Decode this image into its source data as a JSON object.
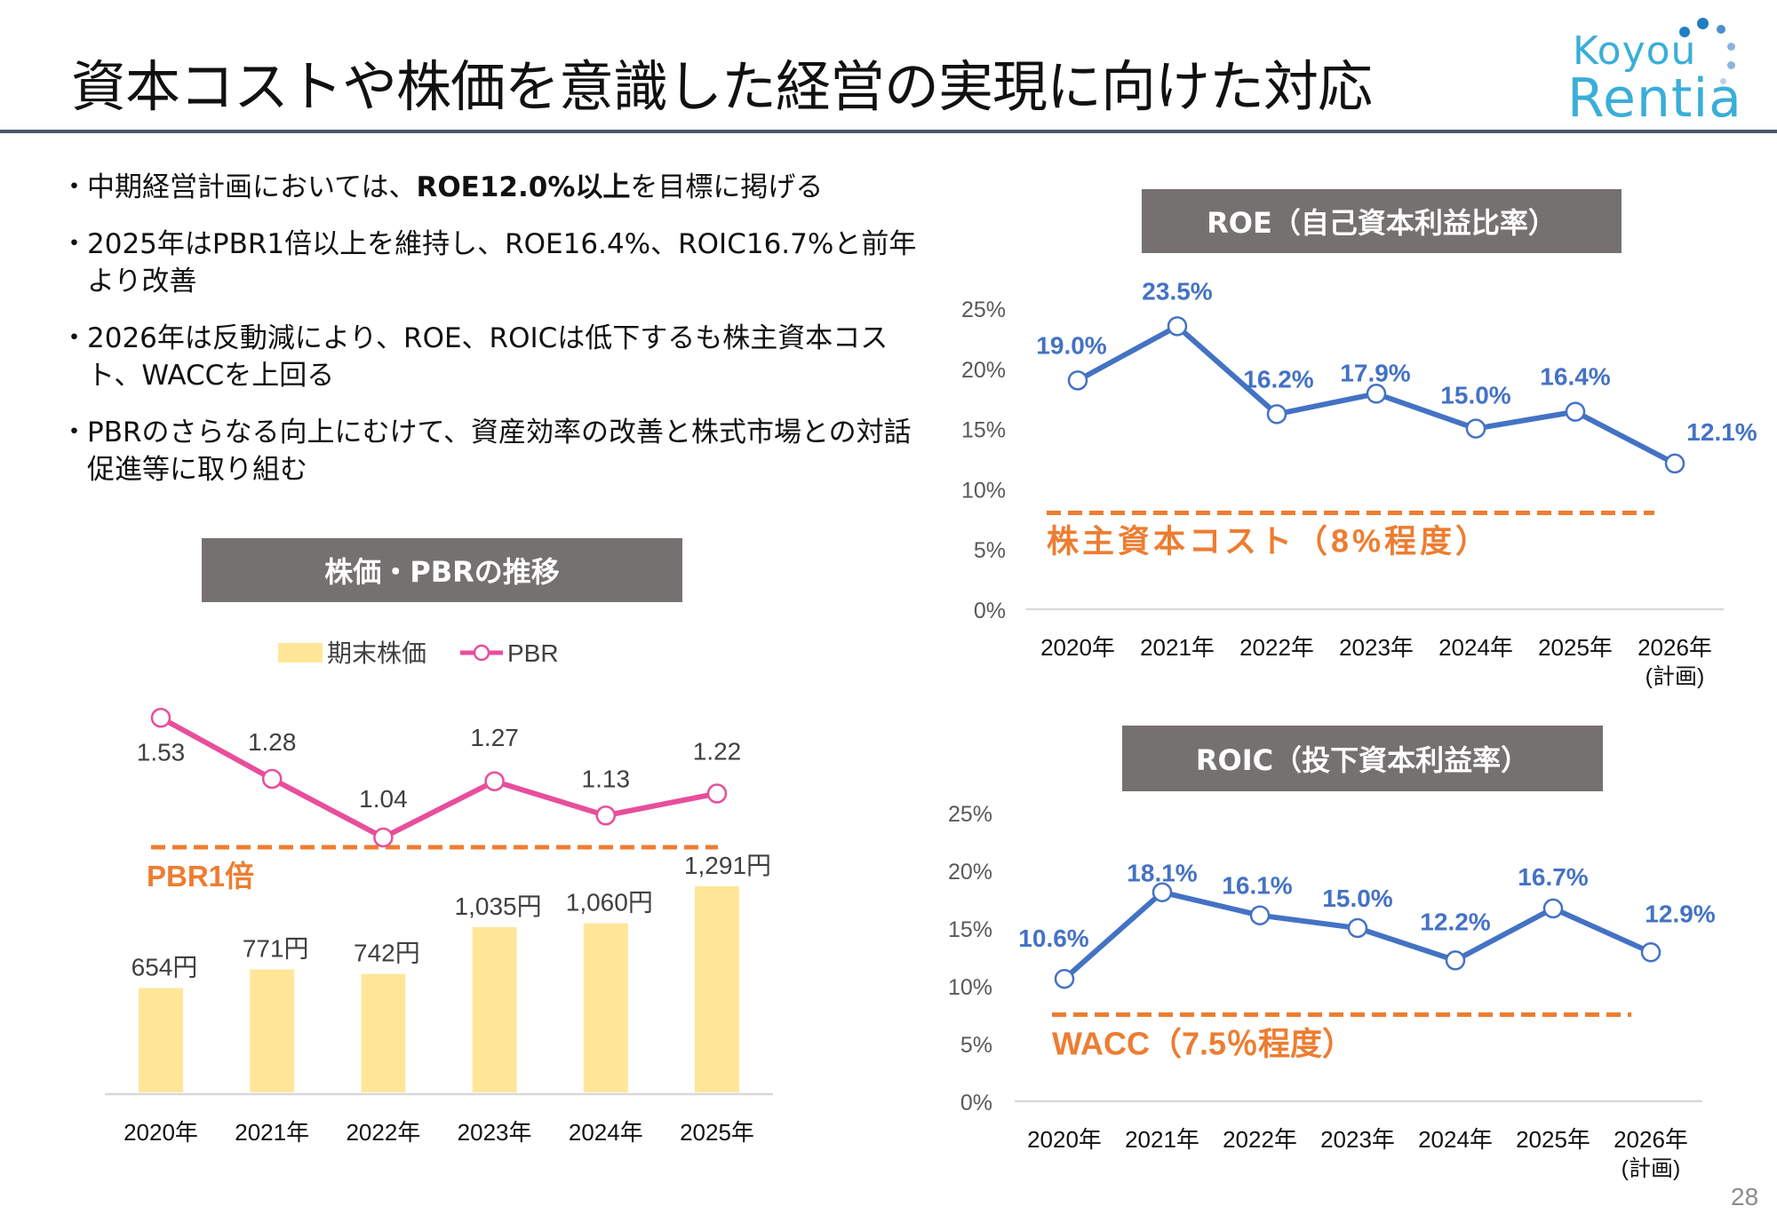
{
  "page": {
    "title": "資本コストや株価を意識した経営の実現に向けた対応",
    "page_number": "28",
    "logo": {
      "line1": "Koyou",
      "line2": "Rentia",
      "icon": "dotted-arc-logo-icon"
    }
  },
  "bullets": [
    {
      "pre": "中期経営計画においては、",
      "bold": "ROE12.0%以上",
      "post": "を目標に掲げる"
    },
    {
      "pre": "2025年はPBR1倍以上を維持し、ROE16.4%、ROIC16.7%と前年より改善",
      "bold": "",
      "post": ""
    },
    {
      "pre": "2026年は反動減により、ROE、ROICは低下するも株主資本コスト、WACCを上回る",
      "bold": "",
      "post": ""
    },
    {
      "pre": "PBRのさらなる向上にむけて、資産効率の改善と株式市場との対話促進等に取り組む",
      "bold": "",
      "post": ""
    }
  ],
  "colors": {
    "header_bg": "#757170",
    "title_rule": "#46566b",
    "bar": "#ffe699",
    "pbr_line": "#e84e9b",
    "ratio_line": "#4472c4",
    "threshold": "#ed7d31",
    "axis": "#d9d9d9",
    "logo": "#3aaed8"
  },
  "chart_data": [
    {
      "id": "stock-pbr",
      "type": "bar",
      "title": "株価・PBRの推移",
      "categories": [
        "2020年",
        "2021年",
        "2022年",
        "2023年",
        "2024年",
        "2025年"
      ],
      "legend": [
        "期末株価",
        "PBR"
      ],
      "legend_position": "top",
      "series": [
        {
          "name": "期末株価",
          "type": "bar",
          "values": [
            654,
            771,
            742,
            1035,
            1060,
            1291
          ],
          "labels": [
            "654円",
            "771円",
            "742円",
            "1,035円",
            "1,060円",
            "1,291円"
          ]
        },
        {
          "name": "PBR",
          "type": "line",
          "values": [
            1.53,
            1.28,
            1.04,
            1.27,
            1.13,
            1.22
          ],
          "labels": [
            "1.53",
            "1.28",
            "1.04",
            "1.27",
            "1.13",
            "1.22"
          ]
        }
      ],
      "threshold": {
        "value": 1.0,
        "label": "PBR1倍"
      },
      "grid": false
    },
    {
      "id": "roe",
      "type": "line",
      "title": "ROE（自己資本利益比率）",
      "categories": [
        "2020年",
        "2021年",
        "2022年",
        "2023年",
        "2024年",
        "2025年",
        "2026年"
      ],
      "category_notes": [
        "",
        "",
        "",
        "",
        "",
        "",
        "(計画)"
      ],
      "series": [
        {
          "name": "ROE",
          "values": [
            19.0,
            23.5,
            16.2,
            17.9,
            15.0,
            16.4,
            12.1
          ],
          "labels": [
            "19.0%",
            "23.5%",
            "16.2%",
            "17.9%",
            "15.0%",
            "16.4%",
            "12.1%"
          ]
        }
      ],
      "yticks": [
        "0%",
        "5%",
        "10%",
        "15%",
        "20%",
        "25%"
      ],
      "ylim": [
        0,
        25
      ],
      "threshold": {
        "value": 8,
        "label": "株主資本コスト（8%程度）"
      },
      "grid": false
    },
    {
      "id": "roic",
      "type": "line",
      "title": "ROIC（投下資本利益率）",
      "categories": [
        "2020年",
        "2021年",
        "2022年",
        "2023年",
        "2024年",
        "2025年",
        "2026年"
      ],
      "category_notes": [
        "",
        "",
        "",
        "",
        "",
        "",
        "(計画)"
      ],
      "series": [
        {
          "name": "ROIC",
          "values": [
            10.6,
            18.1,
            16.1,
            15.0,
            12.2,
            16.7,
            12.9
          ],
          "labels": [
            "10.6%",
            "18.1%",
            "16.1%",
            "15.0%",
            "12.2%",
            "16.7%",
            "12.9%"
          ]
        }
      ],
      "yticks": [
        "0%",
        "5%",
        "10%",
        "15%",
        "20%",
        "25%"
      ],
      "ylim": [
        0,
        25
      ],
      "threshold": {
        "value": 7.5,
        "label": "WACC（7.5％程度）"
      },
      "grid": false
    }
  ]
}
